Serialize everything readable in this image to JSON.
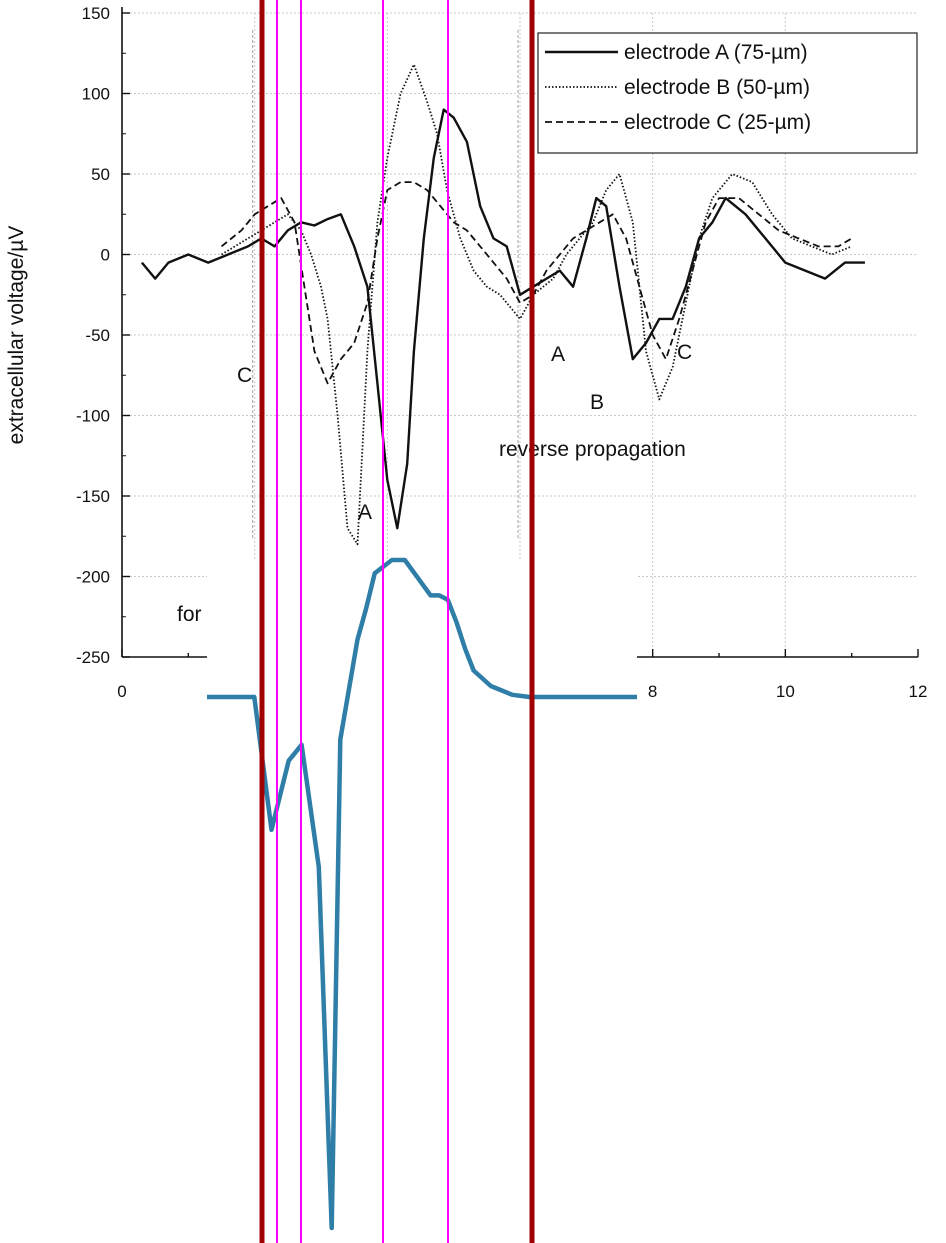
{
  "chart_data": [
    {
      "type": "line",
      "ylabel": "extracellular voltage/µV",
      "xlabel": "",
      "x_ticks": [
        "0",
        "8",
        "10",
        "12"
      ],
      "y_ticks": [
        "150",
        "100",
        "50",
        "0",
        "-50",
        "-100",
        "-150",
        "-200",
        "-250"
      ],
      "xlim": [
        0,
        12
      ],
      "ylim": [
        -250,
        150
      ],
      "grid": true,
      "legend_position": "top-right",
      "series": [
        {
          "name": "electrode A (75-µm)",
          "style": "solid",
          "x": [
            0.3,
            0.5,
            0.7,
            1.0,
            1.3,
            1.6,
            1.9,
            2.1,
            2.3,
            2.5,
            2.7,
            2.9,
            3.1,
            3.3,
            3.5,
            3.7,
            3.85,
            4.0,
            4.15,
            4.3,
            4.4,
            4.55,
            4.7,
            4.85,
            5.0,
            5.2,
            5.4,
            5.6,
            5.8,
            6.0,
            6.2,
            6.4,
            6.6,
            6.8,
            7.0,
            7.15,
            7.3,
            7.5,
            7.7,
            7.9,
            8.1,
            8.3,
            8.5,
            8.7,
            8.9,
            9.1,
            9.4,
            9.7,
            10.0,
            10.3,
            10.6,
            10.9,
            11.2
          ],
          "y": [
            -5,
            -15,
            -5,
            0,
            -5,
            0,
            5,
            10,
            5,
            15,
            20,
            18,
            22,
            25,
            5,
            -20,
            -80,
            -140,
            -170,
            -130,
            -60,
            10,
            60,
            90,
            85,
            70,
            30,
            10,
            5,
            -25,
            -20,
            -15,
            -10,
            -20,
            10,
            35,
            30,
            -20,
            -65,
            -55,
            -40,
            -40,
            -20,
            10,
            20,
            35,
            25,
            10,
            -5,
            -10,
            -15,
            -5,
            -5
          ]
        },
        {
          "name": "electrode B (50-µm)",
          "style": "dotted",
          "x": [
            1.5,
            1.9,
            2.1,
            2.3,
            2.5,
            2.7,
            2.85,
            3.0,
            3.1,
            3.25,
            3.4,
            3.55,
            3.7,
            3.85,
            4.0,
            4.2,
            4.4,
            4.6,
            4.75,
            4.9,
            5.1,
            5.3,
            5.5,
            5.7,
            6.0,
            6.2,
            6.5,
            6.7,
            6.9,
            7.1,
            7.3,
            7.5,
            7.7,
            7.9,
            8.1,
            8.3,
            8.5,
            8.7,
            8.9,
            9.2,
            9.5,
            9.8,
            10.1,
            10.4,
            10.7,
            11.0
          ],
          "y": [
            0,
            10,
            15,
            20,
            25,
            15,
            0,
            -20,
            -40,
            -100,
            -170,
            -180,
            -60,
            20,
            60,
            100,
            118,
            95,
            75,
            40,
            10,
            -10,
            -20,
            -25,
            -40,
            -25,
            -15,
            0,
            10,
            20,
            40,
            50,
            20,
            -60,
            -90,
            -70,
            -30,
            10,
            35,
            50,
            45,
            25,
            10,
            5,
            0,
            5
          ]
        },
        {
          "name": "electrode C (25-µm)",
          "style": "dashed",
          "x": [
            1.5,
            1.8,
            2.0,
            2.2,
            2.4,
            2.6,
            2.75,
            2.9,
            3.1,
            3.3,
            3.5,
            3.7,
            3.85,
            4.0,
            4.2,
            4.4,
            4.6,
            4.8,
            5.0,
            5.2,
            5.4,
            5.6,
            5.8,
            6.0,
            6.2,
            6.4,
            6.6,
            6.8,
            7.0,
            7.2,
            7.4,
            7.6,
            7.8,
            8.0,
            8.2,
            8.4,
            8.6,
            8.8,
            9.0,
            9.3,
            9.6,
            9.9,
            10.2,
            10.5,
            10.8,
            11.0
          ],
          "y": [
            5,
            15,
            25,
            30,
            35,
            20,
            -20,
            -60,
            -80,
            -65,
            -55,
            -30,
            10,
            40,
            45,
            45,
            40,
            30,
            20,
            15,
            5,
            -5,
            -15,
            -30,
            -25,
            -10,
            0,
            10,
            15,
            20,
            25,
            10,
            -20,
            -50,
            -65,
            -40,
            -10,
            20,
            35,
            35,
            25,
            15,
            10,
            5,
            5,
            10
          ]
        }
      ],
      "annotations": [
        "C",
        "A",
        "A",
        "B",
        "C",
        "reverse propagation",
        "for"
      ]
    },
    {
      "type": "line",
      "xlabel": "",
      "ylabel": "",
      "series": [
        {
          "style": "solid",
          "color": "#2e7ea8",
          "t": [
            0.0,
            0.11,
            0.15,
            0.19,
            0.22,
            0.26,
            0.29,
            0.31,
            0.35,
            0.37,
            0.39,
            0.43,
            0.46,
            0.49,
            0.52,
            0.54,
            0.56,
            0.58,
            0.6,
            0.62,
            0.66,
            0.71,
            0.75,
            0.8,
            0.85,
            0.9,
            0.95,
            1.0
          ],
          "v": [
            0,
            0,
            -0.25,
            -0.12,
            -0.09,
            -0.32,
            -1.0,
            -0.08,
            0.13,
            0.2,
            0.28,
            0.31,
            0.31,
            0.27,
            0.23,
            0.23,
            0.22,
            0.17,
            0.11,
            0.06,
            0.025,
            0.005,
            0,
            0,
            0,
            0,
            0,
            0
          ]
        }
      ]
    }
  ],
  "colors": {
    "marker_dark_red": "#a00000",
    "marker_magenta": "#ff00ff",
    "trace_blue": "#2e7ea8",
    "grid": "#c8c8c8"
  }
}
